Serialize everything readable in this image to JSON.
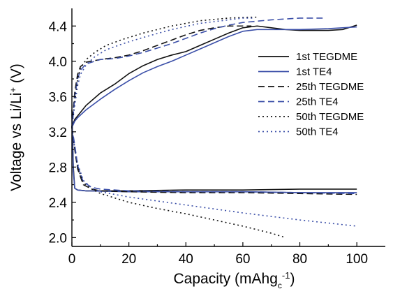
{
  "chart_data": {
    "type": "line",
    "title": "",
    "xlabel": {
      "main": "Capacity (mAhg",
      "sub": "c",
      "sup": "-1",
      "end": ")"
    },
    "ylabel": {
      "main": "Voltage vs Li/Li",
      "sup": "+",
      "end": " (V)"
    },
    "xlim": [
      0,
      110
    ],
    "ylim": [
      1.9,
      4.6
    ],
    "xticks": [
      0,
      20,
      40,
      60,
      80,
      100
    ],
    "xtick_labels": [
      "0",
      "20",
      "40",
      "60",
      "80",
      "100"
    ],
    "yticks": [
      2.0,
      2.4,
      2.8,
      3.2,
      3.6,
      4.0,
      4.4
    ],
    "ytick_labels": [
      "2.0",
      "2.4",
      "2.8",
      "3.2",
      "3.6",
      "4.0",
      "4.4"
    ],
    "grid": false,
    "legend_position": "right",
    "colors": {
      "black": "#111111",
      "blue": "#3b4fa8"
    },
    "series": [
      {
        "name": "1st TEGDME",
        "color": "#111111",
        "style": "solid",
        "charge": [
          [
            0,
            3.25
          ],
          [
            1,
            3.34
          ],
          [
            2,
            3.38
          ],
          [
            5,
            3.5
          ],
          [
            10,
            3.64
          ],
          [
            15,
            3.74
          ],
          [
            20,
            3.86
          ],
          [
            25,
            3.95
          ],
          [
            30,
            4.02
          ],
          [
            35,
            4.07
          ],
          [
            40,
            4.11
          ],
          [
            45,
            4.18
          ],
          [
            50,
            4.25
          ],
          [
            55,
            4.32
          ],
          [
            60,
            4.38
          ],
          [
            65,
            4.4
          ],
          [
            70,
            4.38
          ],
          [
            75,
            4.36
          ],
          [
            80,
            4.35
          ],
          [
            85,
            4.35
          ],
          [
            90,
            4.35
          ],
          [
            95,
            4.36
          ],
          [
            100,
            4.41
          ]
        ],
        "discharge": [
          [
            0,
            3.45
          ],
          [
            0.5,
            2.8
          ],
          [
            1,
            2.56
          ],
          [
            2,
            2.54
          ],
          [
            5,
            2.53
          ],
          [
            20,
            2.53
          ],
          [
            40,
            2.54
          ],
          [
            60,
            2.54
          ],
          [
            80,
            2.55
          ],
          [
            100,
            2.55
          ]
        ]
      },
      {
        "name": "1st TE4",
        "color": "#3b4fa8",
        "style": "solid",
        "charge": [
          [
            0,
            3.25
          ],
          [
            1,
            3.32
          ],
          [
            2,
            3.36
          ],
          [
            5,
            3.45
          ],
          [
            10,
            3.57
          ],
          [
            15,
            3.68
          ],
          [
            20,
            3.78
          ],
          [
            25,
            3.87
          ],
          [
            30,
            3.94
          ],
          [
            35,
            4.0
          ],
          [
            40,
            4.07
          ],
          [
            45,
            4.14
          ],
          [
            50,
            4.21
          ],
          [
            55,
            4.28
          ],
          [
            60,
            4.34
          ],
          [
            65,
            4.36
          ],
          [
            70,
            4.36
          ],
          [
            80,
            4.36
          ],
          [
            90,
            4.37
          ],
          [
            100,
            4.39
          ]
        ],
        "discharge": [
          [
            0,
            3.4
          ],
          [
            0.5,
            2.75
          ],
          [
            1,
            2.56
          ],
          [
            2,
            2.54
          ],
          [
            5,
            2.53
          ],
          [
            20,
            2.52
          ],
          [
            40,
            2.52
          ],
          [
            60,
            2.52
          ],
          [
            80,
            2.51
          ],
          [
            100,
            2.51
          ]
        ]
      },
      {
        "name": "25th TEGDME",
        "color": "#111111",
        "style": "dashed",
        "charge": [
          [
            0,
            3.25
          ],
          [
            0.5,
            3.45
          ],
          [
            1,
            3.65
          ],
          [
            2,
            3.85
          ],
          [
            3,
            3.94
          ],
          [
            5,
            3.99
          ],
          [
            10,
            4.02
          ],
          [
            15,
            4.04
          ],
          [
            20,
            4.07
          ],
          [
            25,
            4.12
          ],
          [
            30,
            4.18
          ],
          [
            35,
            4.24
          ],
          [
            40,
            4.3
          ],
          [
            45,
            4.35
          ],
          [
            50,
            4.38
          ],
          [
            55,
            4.4
          ],
          [
            60,
            4.4
          ],
          [
            63,
            4.4
          ]
        ],
        "discharge": [
          [
            0,
            3.25
          ],
          [
            1,
            3.0
          ],
          [
            2,
            2.78
          ],
          [
            4,
            2.6
          ],
          [
            7,
            2.55
          ],
          [
            10,
            2.53
          ],
          [
            20,
            2.52
          ],
          [
            40,
            2.51
          ],
          [
            60,
            2.51
          ],
          [
            80,
            2.5
          ],
          [
            100,
            2.49
          ]
        ]
      },
      {
        "name": "25th TE4",
        "color": "#3b4fa8",
        "style": "dashed",
        "charge": [
          [
            0,
            3.25
          ],
          [
            0.5,
            3.4
          ],
          [
            1,
            3.6
          ],
          [
            2,
            3.8
          ],
          [
            3,
            3.9
          ],
          [
            5,
            3.97
          ],
          [
            10,
            4.02
          ],
          [
            15,
            4.03
          ],
          [
            20,
            4.06
          ],
          [
            25,
            4.1
          ],
          [
            30,
            4.15
          ],
          [
            35,
            4.2
          ],
          [
            40,
            4.26
          ],
          [
            45,
            4.32
          ],
          [
            50,
            4.37
          ],
          [
            55,
            4.41
          ],
          [
            60,
            4.44
          ],
          [
            70,
            4.47
          ],
          [
            80,
            4.49
          ],
          [
            88,
            4.49
          ]
        ],
        "discharge": [
          [
            0,
            3.25
          ],
          [
            1,
            3.05
          ],
          [
            2,
            2.82
          ],
          [
            4,
            2.63
          ],
          [
            7,
            2.57
          ],
          [
            10,
            2.55
          ],
          [
            20,
            2.53
          ],
          [
            40,
            2.52
          ],
          [
            60,
            2.52
          ],
          [
            80,
            2.51
          ],
          [
            100,
            2.5
          ]
        ]
      },
      {
        "name": "50th TEGDME",
        "color": "#111111",
        "style": "dotted",
        "charge": [
          [
            0,
            3.25
          ],
          [
            1,
            3.55
          ],
          [
            2,
            3.8
          ],
          [
            3,
            3.92
          ],
          [
            5,
            4.02
          ],
          [
            8,
            4.1
          ],
          [
            12,
            4.18
          ],
          [
            18,
            4.25
          ],
          [
            25,
            4.32
          ],
          [
            35,
            4.4
          ],
          [
            45,
            4.46
          ],
          [
            55,
            4.49
          ],
          [
            62,
            4.5
          ],
          [
            65,
            4.5
          ]
        ],
        "discharge": [
          [
            0,
            3.25
          ],
          [
            1,
            3.0
          ],
          [
            2,
            2.8
          ],
          [
            4,
            2.62
          ],
          [
            7,
            2.55
          ],
          [
            10,
            2.5
          ],
          [
            20,
            2.4
          ],
          [
            30,
            2.33
          ],
          [
            40,
            2.27
          ],
          [
            50,
            2.2
          ],
          [
            60,
            2.13
          ],
          [
            70,
            2.05
          ],
          [
            75,
            2.0
          ]
        ]
      },
      {
        "name": "50th TE4",
        "color": "#3b4fa8",
        "style": "dotted",
        "charge": [
          [
            0,
            3.25
          ],
          [
            1,
            3.5
          ],
          [
            2,
            3.72
          ],
          [
            3,
            3.85
          ],
          [
            5,
            3.96
          ],
          [
            8,
            4.05
          ],
          [
            12,
            4.13
          ],
          [
            18,
            4.2
          ],
          [
            25,
            4.27
          ],
          [
            35,
            4.36
          ],
          [
            45,
            4.43
          ],
          [
            55,
            4.47
          ],
          [
            60,
            4.49
          ],
          [
            64,
            4.49
          ]
        ],
        "discharge": [
          [
            0,
            3.25
          ],
          [
            1,
            3.02
          ],
          [
            2,
            2.84
          ],
          [
            4,
            2.65
          ],
          [
            7,
            2.56
          ],
          [
            10,
            2.52
          ],
          [
            20,
            2.46
          ],
          [
            40,
            2.37
          ],
          [
            60,
            2.28
          ],
          [
            80,
            2.2
          ],
          [
            100,
            2.13
          ]
        ]
      }
    ]
  }
}
